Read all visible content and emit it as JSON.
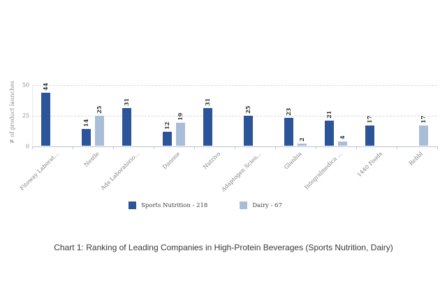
{
  "caption": "Chart 1: Ranking of Leading Companies in High-Protein Beverages (Sports Nutrition, Dairy)",
  "chart_data": {
    "type": "bar",
    "title": "",
    "xlabel": "",
    "ylabel": "# of product launches",
    "ylim": [
      0,
      50
    ],
    "yticks": [
      0,
      25,
      50
    ],
    "grid": "horizontal-dashed",
    "legend_position": "bottom-center",
    "categories": [
      "Fitoway Laborat...",
      "Nestle",
      "Ada Laboratorio...",
      "Danone",
      "Nutrivo",
      "Adaptogen Scien...",
      "Glanbia",
      "Integralmedica ...",
      "1440 Foods",
      "Rebbl"
    ],
    "series": [
      {
        "name": "Sports Nutrition",
        "total": 218,
        "legend_label": "Sports Nutrition - 218",
        "color": "#2b5499",
        "values": [
          44,
          14,
          31,
          12,
          31,
          25,
          23,
          21,
          17,
          0
        ]
      },
      {
        "name": "Dairy",
        "total": 67,
        "legend_label": "Dairy - 67",
        "color": "#a9bdd9",
        "values": [
          0,
          25,
          0,
          19,
          0,
          0,
          2,
          4,
          0,
          17
        ]
      }
    ],
    "colors": {
      "axis_line": "#b7c4da",
      "gridline": "#d9d9d9",
      "tick_text": "#8c8c8c",
      "value_label": "#262626",
      "legend_text": "#404040",
      "caption_text": "#383838"
    }
  }
}
